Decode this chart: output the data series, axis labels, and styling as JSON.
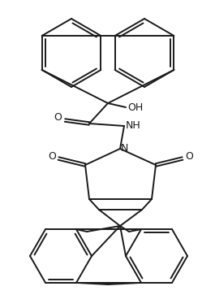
{
  "background_color": "#ffffff",
  "line_color": "#1a1a1a",
  "line_width": 1.4,
  "fig_width": 2.65,
  "fig_height": 3.63,
  "dpi": 100,
  "xlim": [
    0,
    265
  ],
  "ylim": [
    0,
    363
  ],
  "oh_label": "OH",
  "nh_label": "NH",
  "n_label": "N",
  "o_labels": [
    "O",
    "O",
    "O"
  ],
  "font_size": 9
}
